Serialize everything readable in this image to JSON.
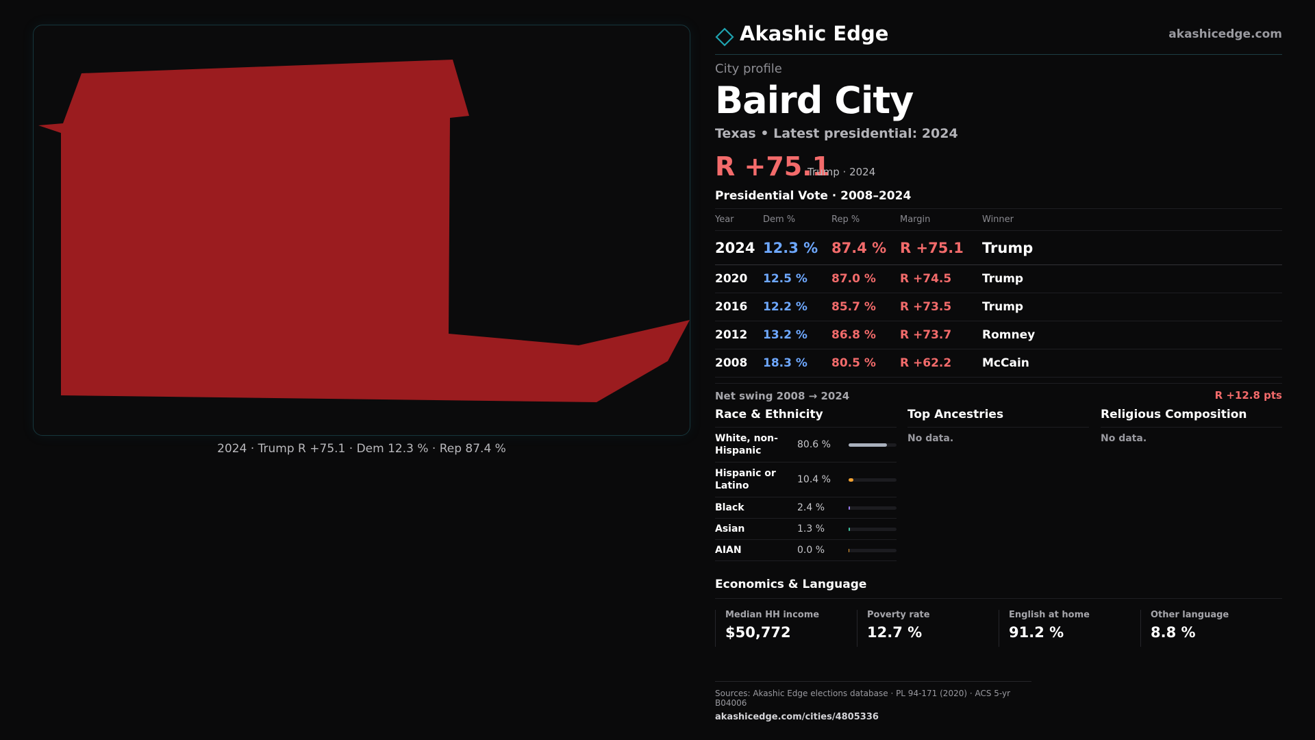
{
  "map": {
    "caption": "2024 · Trump R +75.1 · Dem 12.3 % · Rep 87.4 %",
    "fill_color": "#9b1c1f"
  },
  "brand": {
    "name": "Akashic Edge",
    "url": "akashicedge.com",
    "logo_icon": "diamond-outline-icon",
    "accent": "#1fa3b0"
  },
  "profile": {
    "kicker": "City profile",
    "city": "Baird City",
    "subline": "Texas • Latest presidential: 2024",
    "headline_margin": "R +75.1",
    "headline_note": "Trump · 2024"
  },
  "votes": {
    "title": "Presidential Vote · 2008–2024",
    "headers": [
      "Year",
      "Dem %",
      "Rep %",
      "Margin",
      "Winner"
    ],
    "rows": [
      {
        "year": "2024",
        "dem": "12.3 %",
        "rep": "87.4 %",
        "margin": "R +75.1",
        "winner": "Trump"
      },
      {
        "year": "2020",
        "dem": "12.5 %",
        "rep": "87.0 %",
        "margin": "R +74.5",
        "winner": "Trump"
      },
      {
        "year": "2016",
        "dem": "12.2 %",
        "rep": "85.7 %",
        "margin": "R +73.5",
        "winner": "Trump"
      },
      {
        "year": "2012",
        "dem": "13.2 %",
        "rep": "86.8 %",
        "margin": "R +73.7",
        "winner": "Romney"
      },
      {
        "year": "2008",
        "dem": "18.3 %",
        "rep": "80.5 %",
        "margin": "R +62.2",
        "winner": "McCain"
      }
    ],
    "swing_label": "Net swing 2008 → 2024",
    "swing_value": "R +12.8 pts"
  },
  "race": {
    "title": "Race & Ethnicity",
    "rows": [
      {
        "label": "White, non-Hispanic",
        "value": "80.6 %",
        "fraction": 0.806,
        "color": "#a9b0bd"
      },
      {
        "label": "Hispanic or Latino",
        "value": "10.4 %",
        "fraction": 0.104,
        "color": "#f0a132"
      },
      {
        "label": "Black",
        "value": "2.4 %",
        "fraction": 0.024,
        "color": "#9b7bf0"
      },
      {
        "label": "Asian",
        "value": "1.3 %",
        "fraction": 0.013,
        "color": "#3fc3a0"
      },
      {
        "label": "AIAN",
        "value": "0.0 %",
        "fraction": 0.0,
        "color": "#f0a132"
      }
    ]
  },
  "ancestries": {
    "title": "Top Ancestries",
    "empty": "No data."
  },
  "religion": {
    "title": "Religious Composition",
    "empty": "No data."
  },
  "economics": {
    "title": "Economics & Language",
    "cells": [
      {
        "label": "Median HH income",
        "value": "$50,772"
      },
      {
        "label": "Poverty rate",
        "value": "12.7 %"
      },
      {
        "label": "English at home",
        "value": "91.2 %"
      },
      {
        "label": "Other language",
        "value": "8.8 %"
      }
    ]
  },
  "sources": {
    "line": "Sources: Akashic Edge elections database · PL 94-171 (2020) · ACS 5-yr B04006",
    "url": "akashicedge.com/cities/4805336"
  }
}
